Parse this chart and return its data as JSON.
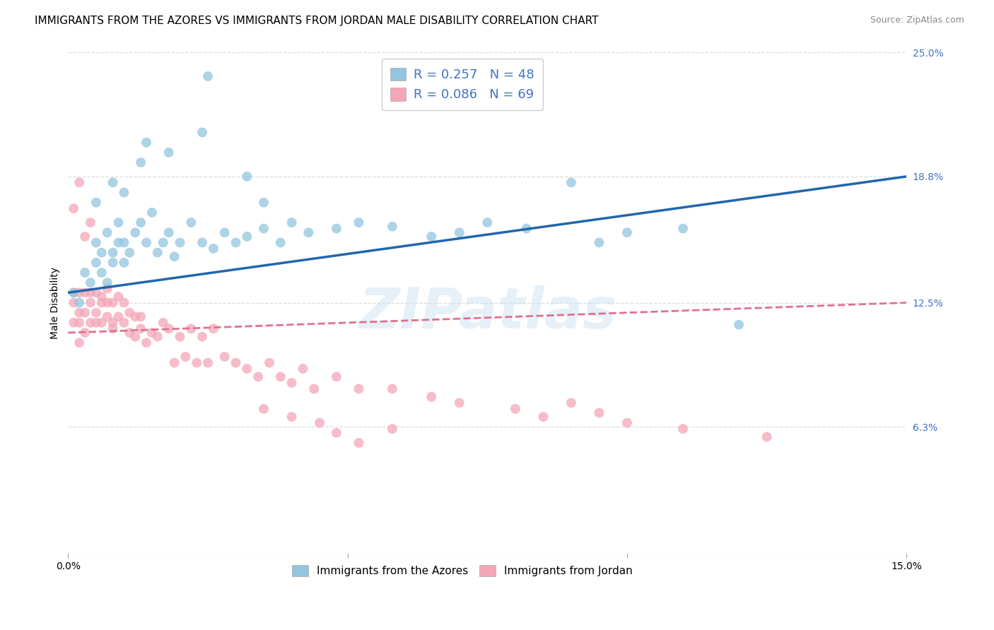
{
  "title": "IMMIGRANTS FROM THE AZORES VS IMMIGRANTS FROM JORDAN MALE DISABILITY CORRELATION CHART",
  "source": "Source: ZipAtlas.com",
  "ylabel": "Male Disability",
  "x_min": 0.0,
  "x_max": 0.15,
  "y_min": 0.0,
  "y_max": 0.25,
  "y_tick_labels_right": [
    "25.0%",
    "18.8%",
    "12.5%",
    "6.3%"
  ],
  "y_tick_vals_right": [
    0.25,
    0.188,
    0.125,
    0.063
  ],
  "watermark": "ZIPatlas",
  "legend_label_azores": "Immigrants from the Azores",
  "legend_label_jordan": "Immigrants from Jordan",
  "R_azores": 0.257,
  "N_azores": 48,
  "R_jordan": 0.086,
  "N_jordan": 69,
  "color_azores": "#92c5de",
  "color_jordan": "#f4a6b8",
  "trendline_azores_color": "#2166ac",
  "trendline_jordan_color": "#e07090",
  "azores_x": [
    0.001,
    0.002,
    0.003,
    0.004,
    0.005,
    0.005,
    0.006,
    0.006,
    0.007,
    0.007,
    0.008,
    0.008,
    0.009,
    0.009,
    0.01,
    0.01,
    0.011,
    0.012,
    0.013,
    0.014,
    0.015,
    0.016,
    0.017,
    0.018,
    0.019,
    0.02,
    0.022,
    0.024,
    0.026,
    0.028,
    0.03,
    0.032,
    0.035,
    0.038,
    0.04,
    0.043,
    0.048,
    0.052,
    0.058,
    0.065,
    0.07,
    0.075,
    0.082,
    0.09,
    0.095,
    0.1,
    0.11,
    0.12
  ],
  "azores_y": [
    0.13,
    0.125,
    0.14,
    0.135,
    0.145,
    0.155,
    0.14,
    0.15,
    0.135,
    0.16,
    0.15,
    0.145,
    0.155,
    0.165,
    0.145,
    0.155,
    0.15,
    0.16,
    0.165,
    0.155,
    0.17,
    0.15,
    0.155,
    0.16,
    0.148,
    0.155,
    0.165,
    0.155,
    0.152,
    0.16,
    0.155,
    0.158,
    0.162,
    0.155,
    0.165,
    0.16,
    0.162,
    0.165,
    0.163,
    0.158,
    0.16,
    0.165,
    0.162,
    0.185,
    0.155,
    0.16,
    0.162,
    0.114
  ],
  "azores_y_outliers": [
    0.238,
    0.205,
    0.21,
    0.195,
    0.2,
    0.185,
    0.188,
    0.175,
    0.18,
    0.175
  ],
  "azores_x_outliers": [
    0.025,
    0.014,
    0.024,
    0.013,
    0.018,
    0.008,
    0.032,
    0.005,
    0.01,
    0.035
  ],
  "jordan_x": [
    0.001,
    0.001,
    0.001,
    0.002,
    0.002,
    0.002,
    0.002,
    0.003,
    0.003,
    0.003,
    0.004,
    0.004,
    0.004,
    0.005,
    0.005,
    0.005,
    0.006,
    0.006,
    0.006,
    0.007,
    0.007,
    0.007,
    0.008,
    0.008,
    0.008,
    0.009,
    0.009,
    0.01,
    0.01,
    0.011,
    0.011,
    0.012,
    0.012,
    0.013,
    0.013,
    0.014,
    0.015,
    0.016,
    0.017,
    0.018,
    0.019,
    0.02,
    0.021,
    0.022,
    0.023,
    0.024,
    0.025,
    0.026,
    0.028,
    0.03,
    0.032,
    0.034,
    0.036,
    0.038,
    0.04,
    0.042,
    0.044,
    0.048,
    0.052,
    0.058,
    0.065,
    0.07,
    0.08,
    0.085,
    0.09,
    0.095,
    0.1,
    0.11,
    0.125
  ],
  "jordan_y": [
    0.13,
    0.115,
    0.125,
    0.105,
    0.12,
    0.13,
    0.115,
    0.11,
    0.12,
    0.13,
    0.125,
    0.115,
    0.13,
    0.12,
    0.13,
    0.115,
    0.125,
    0.115,
    0.128,
    0.118,
    0.125,
    0.132,
    0.115,
    0.125,
    0.112,
    0.118,
    0.128,
    0.115,
    0.125,
    0.11,
    0.12,
    0.108,
    0.118,
    0.112,
    0.118,
    0.105,
    0.11,
    0.108,
    0.115,
    0.112,
    0.095,
    0.108,
    0.098,
    0.112,
    0.095,
    0.108,
    0.095,
    0.112,
    0.098,
    0.095,
    0.092,
    0.088,
    0.095,
    0.088,
    0.085,
    0.092,
    0.082,
    0.088,
    0.082,
    0.082,
    0.078,
    0.075,
    0.072,
    0.068,
    0.075,
    0.07,
    0.065,
    0.062,
    0.058
  ],
  "jordan_y_outliers": [
    0.185,
    0.172,
    0.165,
    0.158,
    0.072,
    0.068,
    0.065,
    0.06,
    0.055,
    0.062
  ],
  "jordan_x_outliers": [
    0.002,
    0.001,
    0.004,
    0.003,
    0.035,
    0.04,
    0.045,
    0.048,
    0.052,
    0.058
  ],
  "background_color": "#ffffff",
  "grid_color": "#dddddd",
  "title_fontsize": 11,
  "axis_label_fontsize": 10,
  "tick_fontsize": 10,
  "legend_fontsize": 13
}
